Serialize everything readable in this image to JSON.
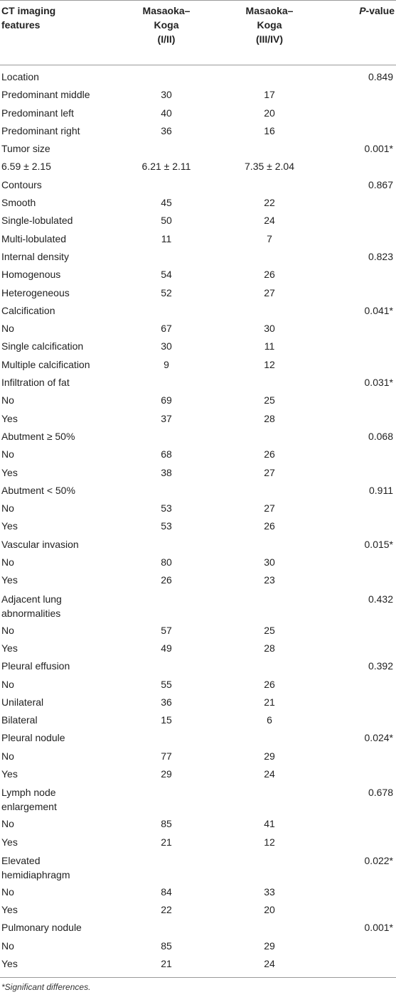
{
  "header": {
    "col1": "CT imaging features",
    "col2_line1": "Masaoka–",
    "col2_line2": "Koga",
    "col2_line3": "(I/II)",
    "col3_line1": "Masaoka–",
    "col3_line2": "Koga",
    "col3_line3": "(III/IV)",
    "col4_p": "P",
    "col4_rest": "-value"
  },
  "rows": [
    {
      "label": "Location",
      "a": "",
      "b": "",
      "p": "0.849"
    },
    {
      "label": "Predominant middle",
      "a": "30",
      "b": "17",
      "p": ""
    },
    {
      "label": "Predominant left",
      "a": "40",
      "b": "20",
      "p": ""
    },
    {
      "label": "Predominant right",
      "a": "36",
      "b": "16",
      "p": ""
    },
    {
      "label": "Tumor size",
      "a": "",
      "b": "",
      "p": "0.001*"
    },
    {
      "label": "6.59 ± 2.15",
      "a": "6.21 ± 2.11",
      "b": "7.35 ± 2.04",
      "p": ""
    },
    {
      "label": "Contours",
      "a": "",
      "b": "",
      "p": "0.867"
    },
    {
      "label": "Smooth",
      "a": "45",
      "b": "22",
      "p": ""
    },
    {
      "label": "Single-lobulated",
      "a": "50",
      "b": "24",
      "p": ""
    },
    {
      "label": "Multi-lobulated",
      "a": "11",
      "b": "7",
      "p": ""
    },
    {
      "label": "Internal density",
      "a": "",
      "b": "",
      "p": "0.823"
    },
    {
      "label": "Homogenous",
      "a": "54",
      "b": "26",
      "p": ""
    },
    {
      "label": "Heterogeneous",
      "a": "52",
      "b": "27",
      "p": ""
    },
    {
      "label": "Calcification",
      "a": "",
      "b": "",
      "p": "0.041*"
    },
    {
      "label": "No",
      "a": "67",
      "b": "30",
      "p": ""
    },
    {
      "label": "Single calcification",
      "a": "30",
      "b": "11",
      "p": ""
    },
    {
      "label": "Multiple calcification",
      "a": "9",
      "b": "12",
      "p": ""
    },
    {
      "label": "Infiltration of fat",
      "a": "",
      "b": "",
      "p": "0.031*"
    },
    {
      "label": "No",
      "a": "69",
      "b": "25",
      "p": ""
    },
    {
      "label": "Yes",
      "a": "37",
      "b": "28",
      "p": ""
    },
    {
      "label": "Abutment ≥ 50%",
      "a": "",
      "b": "",
      "p": "0.068"
    },
    {
      "label": "No",
      "a": "68",
      "b": "26",
      "p": ""
    },
    {
      "label": "Yes",
      "a": "38",
      "b": "27",
      "p": ""
    },
    {
      "label": "Abutment < 50%",
      "a": "",
      "b": "",
      "p": "0.911"
    },
    {
      "label": "No",
      "a": "53",
      "b": "27",
      "p": ""
    },
    {
      "label": "Yes",
      "a": "53",
      "b": "26",
      "p": ""
    },
    {
      "label": "Vascular invasion",
      "a": "",
      "b": "",
      "p": "0.015*"
    },
    {
      "label": "No",
      "a": "80",
      "b": "30",
      "p": ""
    },
    {
      "label": "Yes",
      "a": "26",
      "b": "23",
      "p": ""
    },
    {
      "label": "Adjacent lung abnormalities",
      "a": "",
      "b": "",
      "p": "0.432",
      "tall": true
    },
    {
      "label": "No",
      "a": "57",
      "b": "25",
      "p": ""
    },
    {
      "label": "Yes",
      "a": "49",
      "b": "28",
      "p": ""
    },
    {
      "label": "Pleural effusion",
      "a": "",
      "b": "",
      "p": "0.392"
    },
    {
      "label": "No",
      "a": "55",
      "b": "26",
      "p": ""
    },
    {
      "label": "Unilateral",
      "a": "36",
      "b": "21",
      "p": ""
    },
    {
      "label": "Bilateral",
      "a": "15",
      "b": "6",
      "p": ""
    },
    {
      "label": "Pleural nodule",
      "a": "",
      "b": "",
      "p": "0.024*"
    },
    {
      "label": "No",
      "a": "77",
      "b": "29",
      "p": ""
    },
    {
      "label": "Yes",
      "a": "29",
      "b": "24",
      "p": ""
    },
    {
      "label": "Lymph node enlargement",
      "a": "",
      "b": "",
      "p": "0.678",
      "tall": true
    },
    {
      "label": "No",
      "a": "85",
      "b": "41",
      "p": ""
    },
    {
      "label": "Yes",
      "a": "21",
      "b": "12",
      "p": ""
    },
    {
      "label": "Elevated hemidiaphragm",
      "a": "",
      "b": "",
      "p": "0.022*",
      "tall": true
    },
    {
      "label": "No",
      "a": "84",
      "b": "33",
      "p": ""
    },
    {
      "label": "Yes",
      "a": "22",
      "b": "20",
      "p": ""
    },
    {
      "label": "Pulmonary nodule",
      "a": "",
      "b": "",
      "p": "0.001*"
    },
    {
      "label": "No",
      "a": "85",
      "b": "29",
      "p": ""
    },
    {
      "label": "Yes",
      "a": "21",
      "b": "24",
      "p": ""
    }
  ],
  "footnote": "*Significant differences."
}
